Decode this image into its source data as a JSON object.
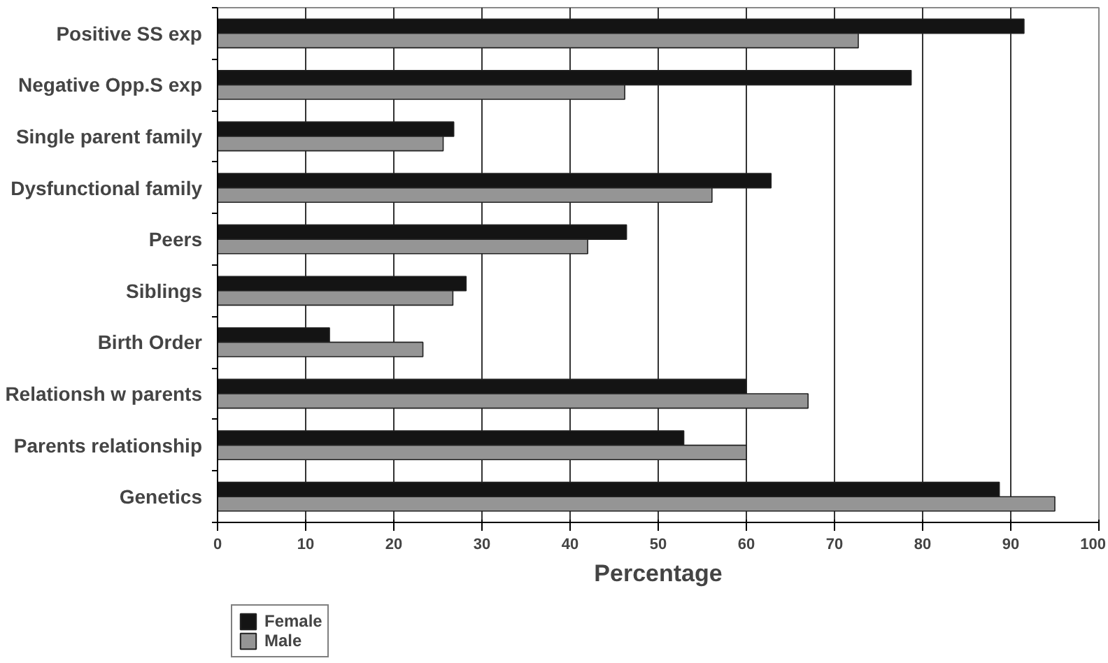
{
  "chart_data": {
    "type": "bar",
    "orientation": "horizontal",
    "xlabel": "Percentage",
    "categories": [
      "Positive SS exp",
      "Negative Opp.S exp",
      "Single parent family",
      "Dysfunctional family",
      "Peers",
      "Siblings",
      "Birth Order",
      "Relationsh w parents",
      "Parents relationship",
      "Genetics"
    ],
    "series": [
      {
        "name": "Female",
        "color": "#141414",
        "values": [
          91.5,
          78.7,
          26.8,
          62.8,
          46.4,
          28.2,
          12.7,
          60,
          52.9,
          88.7
        ]
      },
      {
        "name": "Male",
        "color": "#959595",
        "values": [
          72.7,
          46.2,
          25.6,
          56.1,
          42.0,
          26.7,
          23.3,
          67,
          60,
          95
        ]
      }
    ],
    "xlim": [
      0,
      100
    ],
    "xticks": [
      0,
      10,
      20,
      30,
      40,
      50,
      60,
      70,
      80,
      90,
      100
    ],
    "grid": "x",
    "legend": "bottom left"
  }
}
